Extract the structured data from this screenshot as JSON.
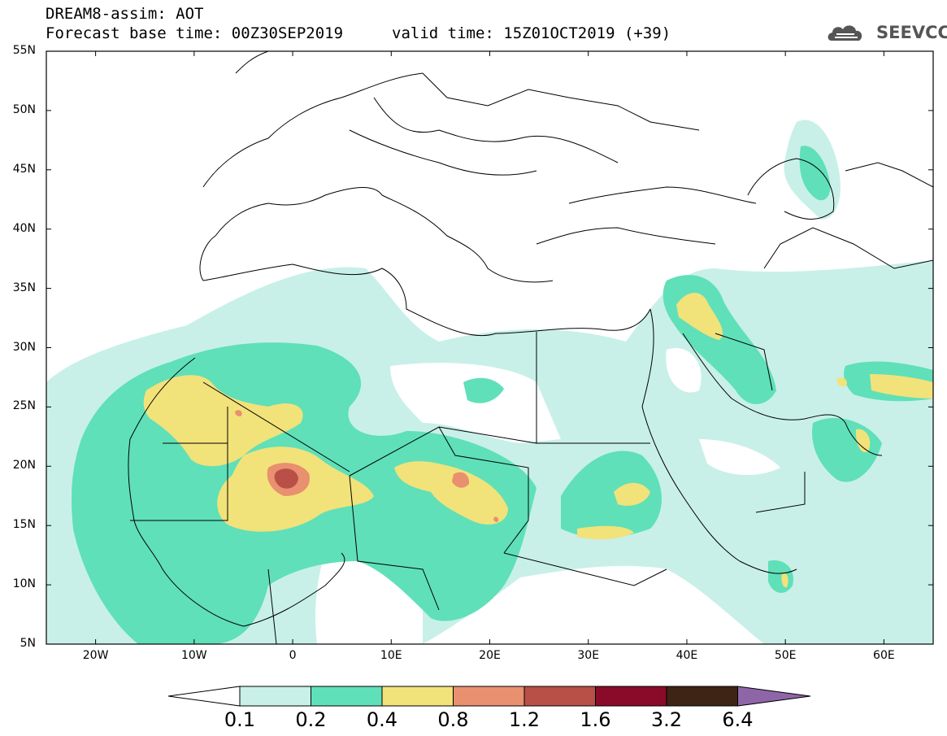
{
  "header": {
    "title": "DREAM8-assim: AOT",
    "base_time": "Forecast base time: 00Z30SEP2019",
    "valid_time": "valid time: 15Z01OCT2019 (+39)"
  },
  "logo": {
    "text": "SEEVCCC",
    "icon": "cloud-icon"
  },
  "axes": {
    "lat_labels": [
      "55N",
      "50N",
      "45N",
      "40N",
      "35N",
      "30N",
      "25N",
      "20N",
      "15N",
      "10N",
      "5N"
    ],
    "lon_labels": [
      "20W",
      "10W",
      "0",
      "10E",
      "20E",
      "30E",
      "40E",
      "50E",
      "60E"
    ],
    "lon_range": [
      -25,
      65
    ],
    "lat_range": [
      5,
      55
    ]
  },
  "legend": {
    "levels": [
      "0.1",
      "0.2",
      "0.4",
      "0.8",
      "1.2",
      "1.6",
      "3.2",
      "6.4"
    ],
    "colors": [
      "#ffffff",
      "#c8f0e8",
      "#5fe0b8",
      "#f2e27a",
      "#e89070",
      "#b85048",
      "#8a0a2a",
      "#3e2414",
      "#8e66a8"
    ]
  },
  "colors": {
    "level1": "#c8f0e8",
    "level2": "#5fe0b8",
    "level3": "#f2e27a",
    "level4": "#e89070",
    "level5": "#b85048"
  }
}
